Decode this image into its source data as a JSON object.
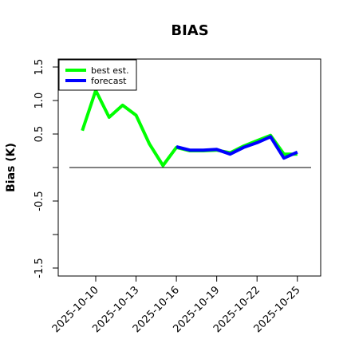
{
  "chart_data": {
    "type": "line",
    "title": "BIAS",
    "ylabel": "Bias (K)",
    "xlabel": "",
    "ylim": [
      -1.6,
      1.65
    ],
    "yticks": [
      -1.5,
      -1.0,
      -0.5,
      0.0,
      0.5,
      1.0,
      1.5
    ],
    "yticklabels": [
      "-1.5",
      "",
      "-0.5",
      "",
      "0.5",
      "1.0",
      "1.5"
    ],
    "xticks": [
      "2025-10-10",
      "2025-10-13",
      "2025-10-16",
      "2025-10-19",
      "2025-10-22",
      "2025-10-25"
    ],
    "highlight_xtick": "2025-10-16",
    "highlight_color": "#228b22",
    "reference_line": 0.0,
    "grid": false,
    "legend_position": "top-left",
    "series": [
      {
        "name": "best est.",
        "color": "#00ff00",
        "x": [
          "2025-10-09",
          "2025-10-10",
          "2025-10-11",
          "2025-10-12",
          "2025-10-13",
          "2025-10-14",
          "2025-10-15",
          "2025-10-16",
          "2025-10-17",
          "2025-10-18",
          "2025-10-19",
          "2025-10-20",
          "2025-10-21",
          "2025-10-22",
          "2025-10-23",
          "2025-10-24",
          "2025-10-25"
        ],
        "values": [
          0.55,
          1.15,
          0.75,
          0.93,
          0.78,
          0.35,
          0.03,
          0.3,
          0.25,
          0.25,
          0.26,
          0.22,
          0.32,
          0.4,
          0.48,
          0.2,
          0.2
        ]
      },
      {
        "name": "forecast",
        "color": "#0000ff",
        "x": [
          "2025-10-16",
          "2025-10-17",
          "2025-10-18",
          "2025-10-19",
          "2025-10-20",
          "2025-10-21",
          "2025-10-22",
          "2025-10-23",
          "2025-10-24",
          "2025-10-25"
        ],
        "values": [
          0.31,
          0.26,
          0.26,
          0.27,
          0.2,
          0.3,
          0.37,
          0.46,
          0.14,
          0.23
        ]
      }
    ]
  }
}
